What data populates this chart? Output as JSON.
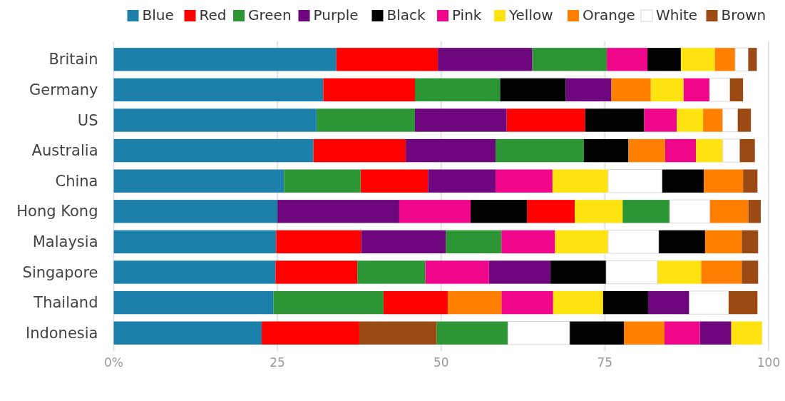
{
  "chart_data": {
    "type": "bar",
    "orientation": "horizontal",
    "categories": [
      "Britain",
      "Germany",
      "US",
      "Australia",
      "China",
      "Hong Kong",
      "Malaysia",
      "Singapore",
      "Thailand",
      "Indonesia"
    ],
    "series": [
      {
        "name": "Blue",
        "color": "#1c80aa",
        "values": [
          34,
          32,
          31,
          30.5,
          26,
          25,
          24.8,
          24.7,
          24.4,
          22.6
        ],
        "base": [
          0,
          0,
          0,
          0,
          0,
          0,
          0,
          0,
          0,
          0
        ]
      },
      {
        "name": "Red",
        "color": "#ff0000",
        "values": [
          15.5,
          14,
          12,
          14.1,
          10.3,
          7.3,
          13,
          12.5,
          9.8,
          14.9
        ],
        "base": [
          34,
          32,
          60,
          30.5,
          37.7,
          63.1,
          24.8,
          24.7,
          41.2,
          22.6
        ]
      },
      {
        "name": "Green",
        "color": "#2d9634",
        "values": [
          11.4,
          13,
          15,
          13.5,
          11.7,
          7.2,
          8.5,
          10.4,
          16.8,
          10.9
        ],
        "base": [
          63.9,
          46,
          31,
          58.3,
          26,
          77.7,
          50.7,
          37.2,
          24.4,
          49.3
        ]
      },
      {
        "name": "Purple",
        "color": "#6e067d",
        "values": [
          14.4,
          7,
          14,
          13.7,
          10.3,
          18.6,
          12.9,
          9.4,
          6.3,
          4.8
        ],
        "base": [
          49.5,
          69,
          46,
          44.6,
          48,
          25,
          37.8,
          57.3,
          81.6,
          89.5
        ]
      },
      {
        "name": "Black",
        "color": "#000000",
        "values": [
          5.1,
          10,
          9,
          6.8,
          6.4,
          8.6,
          7.1,
          8.5,
          6.9,
          8.3
        ],
        "base": [
          81.5,
          59,
          72,
          71.8,
          83.7,
          54.5,
          83.2,
          66.7,
          74.7,
          69.6
        ]
      },
      {
        "name": "Pink",
        "color": "#f0068a",
        "values": [
          6.2,
          4,
          5,
          4.7,
          8.7,
          10.9,
          8.2,
          9.7,
          7.9,
          5.4
        ],
        "base": [
          75.3,
          87,
          81,
          84.2,
          58.3,
          43.6,
          59.2,
          47.6,
          59.2,
          84.1
        ]
      },
      {
        "name": "Yellow",
        "color": "#ffe311",
        "values": [
          5.2,
          5,
          4,
          4.1,
          8.5,
          7.3,
          8.1,
          6.7,
          7.6,
          4.7
        ],
        "base": [
          86.6,
          82,
          86,
          88.9,
          67,
          70.4,
          67.4,
          83,
          67.1,
          94.3
        ]
      },
      {
        "name": "Orange",
        "color": "#ff8000",
        "values": [
          3.1,
          6,
          3,
          5.6,
          6,
          5.9,
          5.6,
          6.2,
          8.2,
          6.2
        ],
        "base": [
          91.8,
          76,
          90,
          78.6,
          90.1,
          91,
          90.3,
          89.7,
          51,
          77.9
        ]
      },
      {
        "name": "White",
        "color": "#ffffff",
        "values": [
          2,
          3.1,
          2.3,
          2.6,
          8.2,
          6.1,
          7.7,
          7.8,
          6,
          9.4
        ],
        "base": [
          94.9,
          91,
          93,
          93,
          75.5,
          84.9,
          75.5,
          75.2,
          87.9,
          60.2
        ]
      },
      {
        "name": "Brown",
        "color": "#9c4a14",
        "values": [
          1.3,
          2,
          2,
          2.3,
          2.2,
          1.9,
          2.5,
          2.5,
          4.4,
          11.8
        ],
        "base": [
          96.9,
          94.1,
          95.3,
          95.6,
          96.1,
          96.9,
          95.9,
          95.9,
          93.9,
          37.5
        ]
      }
    ],
    "xlim": [
      0,
      100
    ],
    "xticks": [
      {
        "value": 0,
        "label": "0%"
      },
      25,
      50,
      75,
      100
    ],
    "grid": "x",
    "legend": "top"
  }
}
